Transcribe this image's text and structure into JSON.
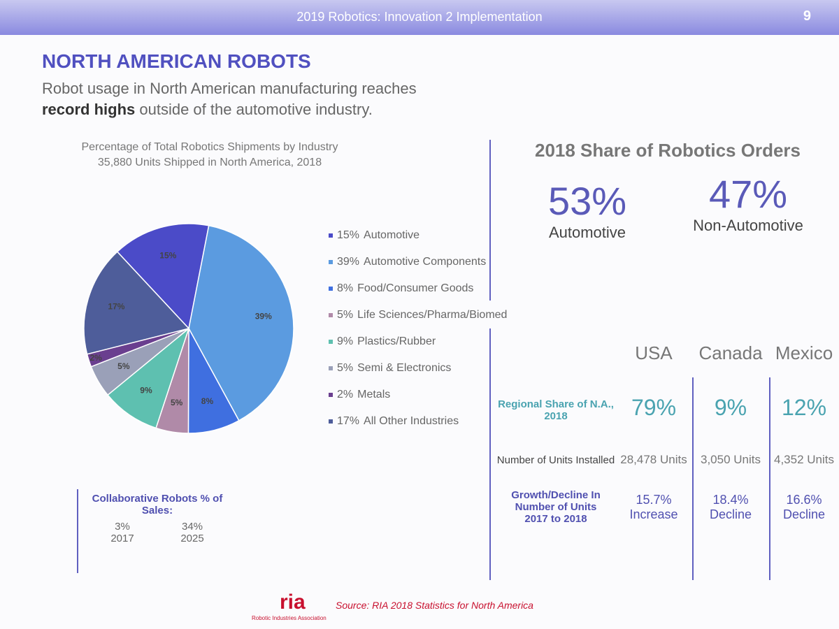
{
  "header": {
    "title": "2019 Robotics: Innovation 2 Implementation",
    "page": "9"
  },
  "slide": {
    "title": "NORTH AMERICAN ROBOTS",
    "subtitle": {
      "line1": "Robot usage in North American manufacturing reaches",
      "bold": "record highs",
      "rest": " outside of the automotive industry."
    }
  },
  "chart_data": {
    "type": "pie",
    "title": "Percentage of Total Robotics Shipments by Industry",
    "subtitle": "35,880 Units Shipped in North America, 2018",
    "categories": [
      "Automotive",
      "Automotive Components",
      "Food/Consumer Goods",
      "Life Sciences/Pharma/Biomed",
      "Plastics/Rubber",
      "Semi & Electronics",
      "Metals",
      "All Other Industries"
    ],
    "values": [
      15,
      39,
      8,
      5,
      9,
      5,
      2,
      17
    ],
    "value_labels": [
      "15%",
      "39%",
      "8%",
      "5%",
      "9%",
      "5%",
      "2%",
      "17%"
    ],
    "colors": [
      "#4b4bc8",
      "#5b9be0",
      "#3f6fe0",
      "#b08aa8",
      "#5ec0b0",
      "#9aa0b8",
      "#6a3f8f",
      "#4e5d9a"
    ]
  },
  "collaborative": {
    "title": "Collaborative Robots % of Sales:",
    "columns": [
      {
        "value": "3%",
        "year": "2017"
      },
      {
        "value": "34%",
        "year": "2025"
      }
    ]
  },
  "share": {
    "title": "2018 Share of Robotics Orders",
    "items": [
      {
        "value": "53%",
        "label": "Automotive"
      },
      {
        "value": "47%",
        "label": "Non-Automotive"
      }
    ]
  },
  "table": {
    "columns": [
      "USA",
      "Canada",
      "Mexico"
    ],
    "rows": [
      {
        "label": "Regional Share of N.A., 2018",
        "cells": [
          "79%",
          "9%",
          "12%"
        ]
      },
      {
        "label": "Number of Units Installed",
        "cells": [
          "28,478 Units",
          "3,050 Units",
          "4,352 Units"
        ]
      },
      {
        "label": "Growth/Decline In Number of Units 2017 to 2018",
        "cells": [
          "15.7% Increase",
          "18.4% Decline",
          "16.6% Decline"
        ]
      }
    ]
  },
  "footer": {
    "logo": "ria",
    "logo_caption": "Robotic Industries Association",
    "source": "Source: RIA 2018 Statistics for North America"
  }
}
